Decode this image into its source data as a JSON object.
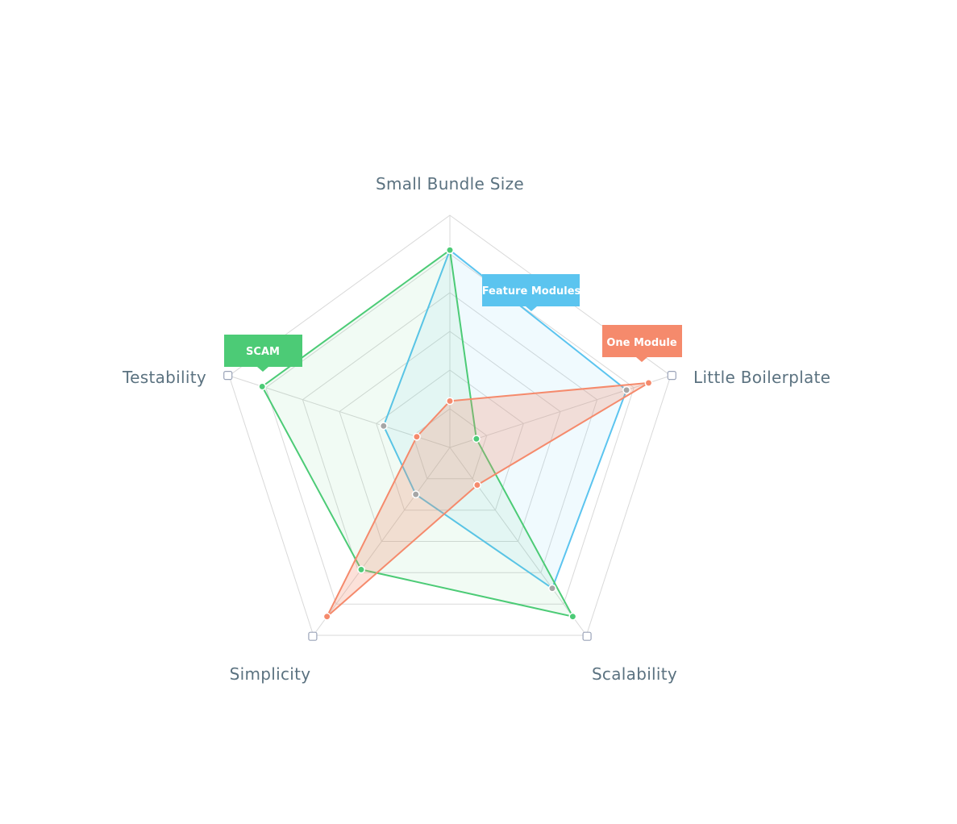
{
  "chart_data": {
    "type": "radar",
    "axes": [
      "Small Bundle Size",
      "Little Boilerplate",
      "Scalability",
      "Simplicity",
      "Testability"
    ],
    "max": 10,
    "series": [
      {
        "name": "SCAM",
        "color": "#4ccb76",
        "values": [
          8.5,
          1.2,
          9.0,
          6.5,
          8.5
        ]
      },
      {
        "name": "Feature Modules",
        "color": "#5bc4ef",
        "values": [
          8.5,
          8.0,
          7.5,
          2.5,
          3.0
        ]
      },
      {
        "name": "One Module",
        "color": "#f58a6c",
        "values": [
          2.0,
          9.0,
          2.0,
          9.0,
          1.5
        ]
      }
    ],
    "legend": [
      {
        "series": "SCAM",
        "label": "SCAM",
        "color": "#4ccb76"
      },
      {
        "series": "Feature Modules",
        "label": "Feature Modules",
        "color": "#5bc4ef"
      },
      {
        "series": "One Module",
        "label": "One Module",
        "color": "#f58a6c"
      }
    ],
    "grid_levels": 6,
    "overlap_point_color": "#a6a6a6"
  }
}
